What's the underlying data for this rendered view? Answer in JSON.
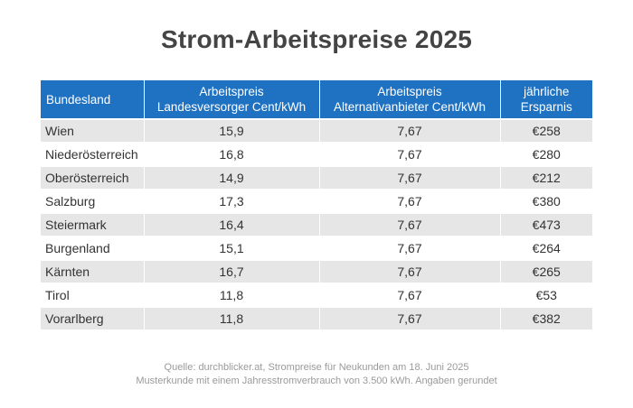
{
  "title": "Strom-Arbeitspreise 2025",
  "chart_data": {
    "type": "table",
    "title": "Strom-Arbeitspreise 2025",
    "columns": [
      [
        "Bundesland"
      ],
      [
        "Arbeitspreis",
        "Landesversorger Cent/kWh"
      ],
      [
        "Arbeitspreis",
        "Alternativanbieter Cent/kWh"
      ],
      [
        "jährliche",
        "Ersparnis"
      ]
    ],
    "rows": [
      [
        "Wien",
        "15,9",
        "7,67",
        "€258"
      ],
      [
        "Niederösterreich",
        "16,8",
        "7,67",
        "€280"
      ],
      [
        "Oberösterreich",
        "14,9",
        "7,67",
        "€212"
      ],
      [
        "Salzburg",
        "17,3",
        "7,67",
        "€380"
      ],
      [
        "Steiermark",
        "16,4",
        "7,67",
        "€473"
      ],
      [
        "Burgenland",
        "15,1",
        "7,67",
        "€264"
      ],
      [
        "Kärnten",
        "16,7",
        "7,67",
        "€265"
      ],
      [
        "Tirol",
        "11,8",
        "7,67",
        "€53"
      ],
      [
        "Vorarlberg",
        "11,8",
        "7,67",
        "€382"
      ]
    ]
  },
  "source": {
    "line1": "Quelle: durchblicker.at, Strompreise für Neukunden am 18. Juni 2025",
    "line2": "Musterkunde mit einem Jahresstromverbrauch von 3.500 kWh. Angaben gerundet"
  },
  "colors": {
    "header_bg": "#1f72c2",
    "row_stripe": "#e6e6e6",
    "title": "#444444",
    "footnote": "#9a9a9a"
  }
}
